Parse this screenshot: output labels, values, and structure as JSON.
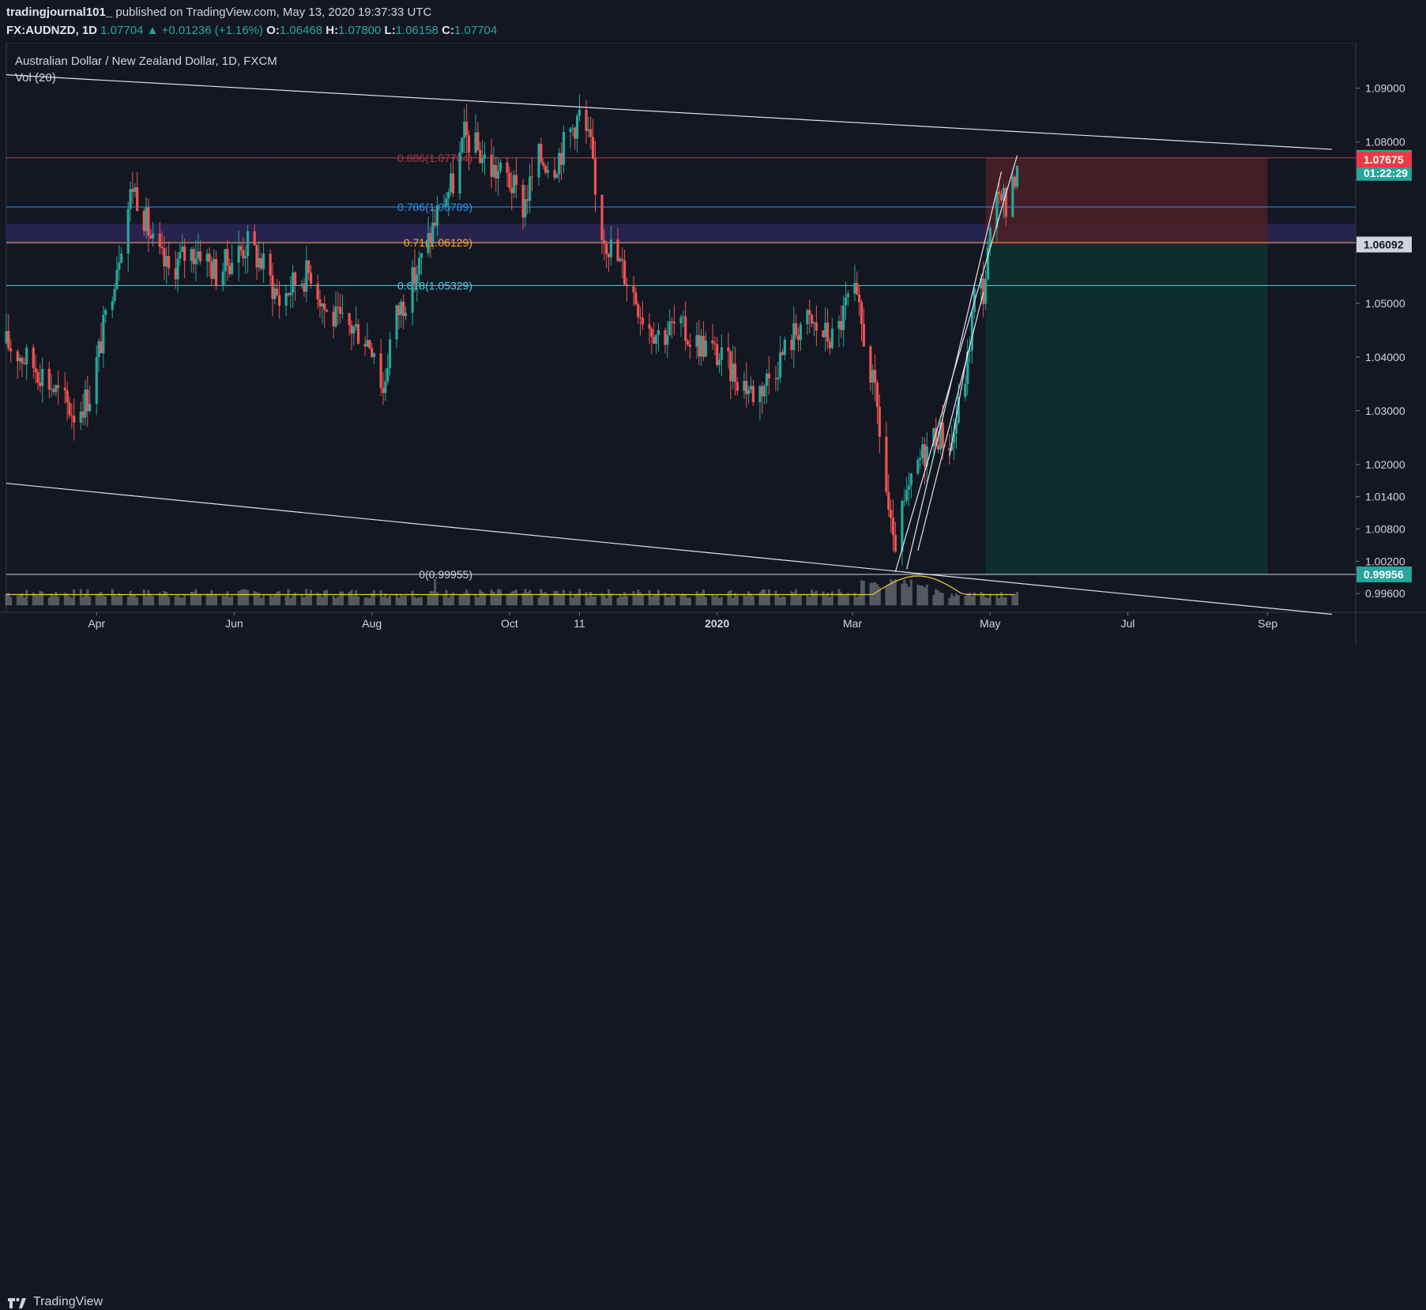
{
  "header": {
    "publisher": "tradingjournal101_",
    "published_text": "published on TradingView.com, May 13, 2020 19:37:33 UTC",
    "symbol": "FX:AUDNZD, 1D",
    "last": "1.07704",
    "change": "+0.01236 (+1.16%)",
    "o_label": "O:",
    "o_value": "1.06468",
    "h_label": "H:",
    "h_value": "1.07800",
    "l_label": "L:",
    "l_value": "1.06158",
    "c_label": "C:",
    "c_value": "1.07704"
  },
  "footer": {
    "brand": "TradingView"
  },
  "colors": {
    "background": "#131722",
    "up": "#26a69a",
    "down": "#ef5350",
    "fib_0886": "#b2383f",
    "fib_0786": "#2196f3",
    "fib_071": "#ffa726",
    "fib_0618": "#4dd0e1",
    "zone": "#2a2656",
    "stop_zone": "#4a1f28",
    "target_zone": "#10302f",
    "volume": "#8a8d94",
    "volume_ma": "#e6c630"
  },
  "chart_data": {
    "type": "candlestick",
    "title": "Australian Dollar / New Zealand Dollar, 1D, FXCM",
    "study": "Vol (20)",
    "ylim": [
      0.9925,
      1.097
    ],
    "y_ticks": [
      "1.09000",
      "1.08000",
      "1.05000",
      "1.04000",
      "1.03000",
      "1.02000",
      "1.01400",
      "1.00800",
      "1.00200",
      "0.99600"
    ],
    "y_tick_values": [
      1.09,
      1.08,
      1.05,
      1.04,
      1.03,
      1.02,
      1.014,
      1.008,
      1.002,
      0.996
    ],
    "x_ticks": [
      "Apr",
      "Jun",
      "Aug",
      "Oct",
      "11",
      "2020",
      "Mar",
      "May",
      "Jul",
      "Sep"
    ],
    "x_tick_dates": [
      "2019-04-01",
      "2019-06-01",
      "2019-08-01",
      "2019-10-01",
      "2019-11-01",
      "2020-01-01",
      "2020-03-01",
      "2020-05-01",
      "2020-07-01",
      "2020-09-01"
    ],
    "x_range": [
      "2019-02-20",
      "2020-10-10"
    ],
    "price_labels": [
      {
        "value": 1.07704,
        "text": "1.07704",
        "bg": "#26a69a"
      },
      {
        "value": 1.07425,
        "text": "01:22:29",
        "bg": "#26a69a"
      },
      {
        "value": 1.07675,
        "text": "1.07675",
        "bg": "#f23645"
      },
      {
        "value": 1.06092,
        "text": "1.06092",
        "bg": "#d1d4dc"
      },
      {
        "value": 0.99956,
        "text": "0.99956",
        "bg": "#26a69a"
      }
    ],
    "fib_levels": [
      {
        "text": "0.886(1.07704)",
        "value": 1.07704,
        "key": "fib_0886"
      },
      {
        "text": "0.786(1.06789)",
        "value": 1.06789,
        "key": "fib_0786"
      },
      {
        "text": "0.71(1.06129)",
        "value": 1.06129,
        "key": "fib_071"
      },
      {
        "text": "0.618(1.05329)",
        "value": 1.05329,
        "key": "fib_0618"
      },
      {
        "text": "0(0.99955)",
        "value": 0.99955,
        "key": "volume"
      }
    ],
    "zone": {
      "from": 1.061,
      "to": 1.0648
    },
    "position": {
      "start": "2020-04-29",
      "end": "2020-09-01",
      "entry": 1.06092,
      "stop": 1.07704,
      "target": 0.99956
    },
    "anchors": [
      {
        "date": "2019-02-20",
        "price": 1.0925
      },
      {
        "date": "2019-11-01",
        "price": 1.0865
      },
      {
        "date": "2020-05-13",
        "price": 1.0771
      },
      {
        "date": "2019-02-20",
        "price": 1.0165
      },
      {
        "date": "2020-03-19",
        "price": 1.0002
      },
      {
        "date": "2020-03-20",
        "price": 1.0
      },
      {
        "date": "2020-03-25",
        "price": 1.0005
      },
      {
        "date": "2020-03-30",
        "price": 1.004
      },
      {
        "date": "2020-04-13",
        "price": 1.0215
      },
      {
        "date": "2020-04-21",
        "price": 1.041
      },
      {
        "date": "2020-04-28",
        "price": 1.052
      },
      {
        "date": "2020-05-06",
        "price": 1.0745
      },
      {
        "date": "2020-05-13",
        "price": 1.0775
      }
    ],
    "trendlines": [
      {
        "from": 0,
        "to": 1,
        "extend": true
      },
      {
        "from": 3,
        "to": 4,
        "extend": true
      },
      {
        "from": 5,
        "to": 12,
        "extend": false
      },
      {
        "from": 6,
        "to": 11,
        "extend": false
      },
      {
        "from": 7,
        "to": 10,
        "extend": false
      },
      {
        "from": 8,
        "to": 9,
        "extend": false
      }
    ],
    "volume_band": {
      "base": 0.9938,
      "top": 1.0008
    },
    "series_close": [
      [
        "2019-02-20",
        1.0425
      ],
      [
        "2019-03-01",
        1.0395
      ],
      [
        "2019-03-08",
        1.037
      ],
      [
        "2019-03-15",
        1.033
      ],
      [
        "2019-03-22",
        1.0295
      ],
      [
        "2019-03-29",
        1.033
      ],
      [
        "2019-04-05",
        1.047
      ],
      [
        "2019-04-12",
        1.062
      ],
      [
        "2019-04-17",
        1.072
      ],
      [
        "2019-04-20",
        1.069
      ],
      [
        "2019-04-27",
        1.0595
      ],
      [
        "2019-05-03",
        1.056
      ],
      [
        "2019-05-10",
        1.059
      ],
      [
        "2019-05-17",
        1.06
      ],
      [
        "2019-05-24",
        1.0555
      ],
      [
        "2019-05-31",
        1.0585
      ],
      [
        "2019-06-07",
        1.061
      ],
      [
        "2019-06-14",
        1.057
      ],
      [
        "2019-06-21",
        1.0505
      ],
      [
        "2019-06-28",
        1.054
      ],
      [
        "2019-07-05",
        1.056
      ],
      [
        "2019-07-12",
        1.048
      ],
      [
        "2019-07-19",
        1.046
      ],
      [
        "2019-07-26",
        1.045
      ],
      [
        "2019-08-02",
        1.042
      ],
      [
        "2019-08-06",
        1.0335
      ],
      [
        "2019-08-10",
        1.046
      ],
      [
        "2019-08-17",
        1.052
      ],
      [
        "2019-08-24",
        1.059
      ],
      [
        "2019-08-31",
        1.068
      ],
      [
        "2019-09-07",
        1.073
      ],
      [
        "2019-09-11",
        1.081
      ],
      [
        "2019-09-16",
        1.079
      ],
      [
        "2019-09-23",
        1.075
      ],
      [
        "2019-09-30",
        1.0735
      ],
      [
        "2019-10-07",
        1.068
      ],
      [
        "2019-10-14",
        1.077
      ],
      [
        "2019-10-21",
        1.076
      ],
      [
        "2019-10-28",
        1.082
      ],
      [
        "2019-11-01",
        1.085
      ],
      [
        "2019-11-06",
        1.079
      ],
      [
        "2019-11-09",
        1.065
      ],
      [
        "2019-11-16",
        1.0595
      ],
      [
        "2019-11-23",
        1.054
      ],
      [
        "2019-11-30",
        1.047
      ],
      [
        "2019-12-07",
        1.044
      ],
      [
        "2019-12-14",
        1.046
      ],
      [
        "2019-12-21",
        1.043
      ],
      [
        "2019-12-28",
        1.042
      ],
      [
        "2020-01-04",
        1.039
      ],
      [
        "2020-01-11",
        1.036
      ],
      [
        "2020-01-18",
        1.033
      ],
      [
        "2020-01-25",
        1.037
      ],
      [
        "2020-02-01",
        1.042
      ],
      [
        "2020-02-08",
        1.047
      ],
      [
        "2020-02-15",
        1.045
      ],
      [
        "2020-02-22",
        1.043
      ],
      [
        "2020-03-01",
        1.053
      ],
      [
        "2020-03-07",
        1.042
      ],
      [
        "2020-03-12",
        1.03
      ],
      [
        "2020-03-16",
        1.015
      ],
      [
        "2020-03-19",
        1.004
      ],
      [
        "2020-03-24",
        1.012
      ],
      [
        "2020-03-31",
        1.021
      ],
      [
        "2020-04-07",
        1.026
      ],
      [
        "2020-04-14",
        1.024
      ],
      [
        "2020-04-21",
        1.039
      ],
      [
        "2020-04-25",
        1.0555
      ],
      [
        "2020-04-28",
        1.052
      ],
      [
        "2020-05-01",
        1.062
      ],
      [
        "2020-05-06",
        1.072
      ],
      [
        "2020-05-09",
        1.065
      ],
      [
        "2020-05-13",
        1.077
      ]
    ]
  }
}
